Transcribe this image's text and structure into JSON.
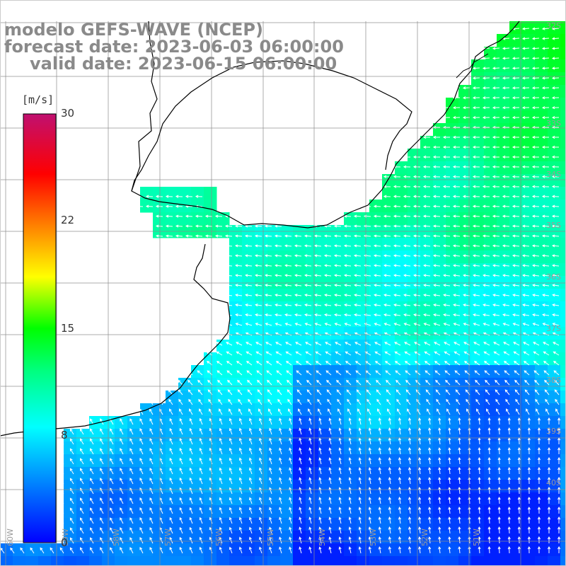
{
  "titles": {
    "model": "modelo GEFS-WAVE (NCEP)",
    "forecast": "forecast date: 2023-06-03 06:00:00",
    "valid": "valid date: 2023-06-15 06:00:00"
  },
  "colorbar": {
    "unit": "[m/s]",
    "ticks": [
      "30",
      "22",
      "15",
      "8",
      "0"
    ]
  },
  "lat_labels": [
    "32S",
    "33S",
    "34S",
    "35S",
    "36S",
    "37S",
    "38S",
    "39S",
    "40S"
  ],
  "lon_labels": [
    "60W",
    "59W",
    "58W",
    "57W",
    "56W",
    "55W",
    "54W",
    "53W",
    "52W",
    "51W"
  ],
  "colors": {
    "land": "#ffffff",
    "coast": "#000000",
    "grid": "#8c8c8c",
    "arrow": "#ffffff"
  }
}
